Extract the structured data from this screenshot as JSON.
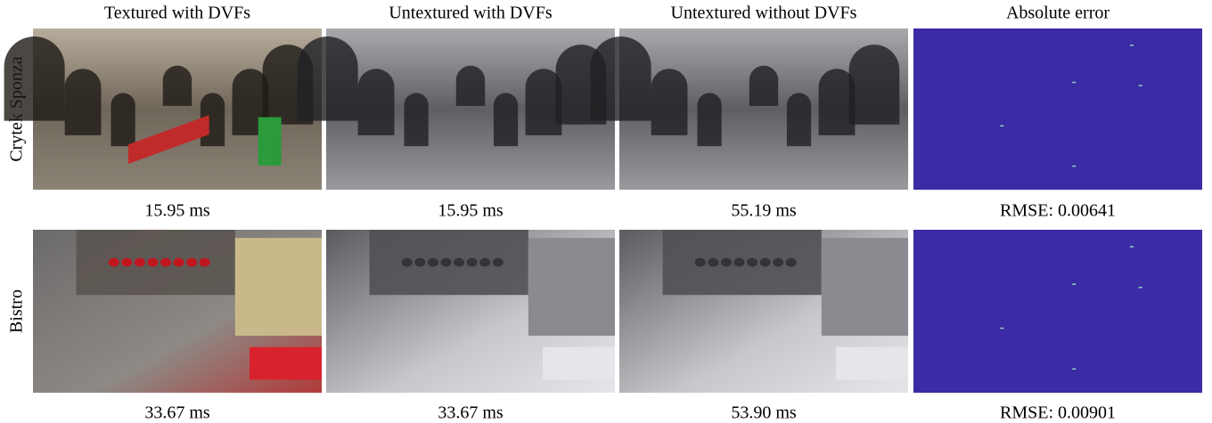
{
  "columns": [
    "Textured with DVFs",
    "Untextured with DVFs",
    "Untextured without DVFs",
    "Absolute error"
  ],
  "rows": [
    {
      "label": "Crytek Sponza",
      "captions": [
        "15.95 ms",
        "15.95 ms",
        "55.19 ms",
        "RMSE: 0.00641"
      ]
    },
    {
      "label": "Bistro",
      "captions": [
        "33.67 ms",
        "33.67 ms",
        "53.90 ms",
        "RMSE: 0.00901"
      ]
    }
  ]
}
